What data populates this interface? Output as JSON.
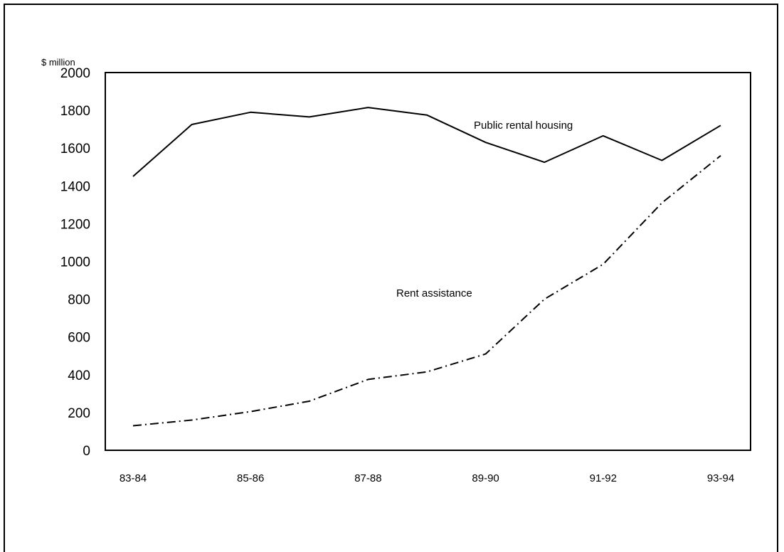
{
  "chart_data": {
    "type": "line",
    "ylabel": "$ million",
    "ylim": [
      0,
      2000
    ],
    "yticks": [
      "0",
      "200",
      "400",
      "600",
      "800",
      "1000",
      "1200",
      "1400",
      "1600",
      "1800",
      "2000"
    ],
    "categories": [
      "83-84",
      "84-85",
      "85-86",
      "86-87",
      "87-88",
      "88-89",
      "89-90",
      "90-91",
      "91-92",
      "92-93",
      "93-94"
    ],
    "xtick_labels": [
      "83-84",
      "",
      "85-86",
      "",
      "87-88",
      "",
      "89-90",
      "",
      "91-92",
      "",
      "93-94"
    ],
    "series": [
      {
        "name": "Public rental housing",
        "style": "solid",
        "color": "#000000",
        "values": [
          1450,
          1725,
          1790,
          1765,
          1815,
          1775,
          1630,
          1525,
          1665,
          1535,
          1720
        ]
      },
      {
        "name": "Rent assistance",
        "style": "dash-dot",
        "color": "#000000",
        "values": [
          130,
          160,
          205,
          260,
          375,
          415,
          510,
          800,
          985,
          1310,
          1560
        ]
      }
    ],
    "grid": false,
    "legend": "inline labels"
  }
}
